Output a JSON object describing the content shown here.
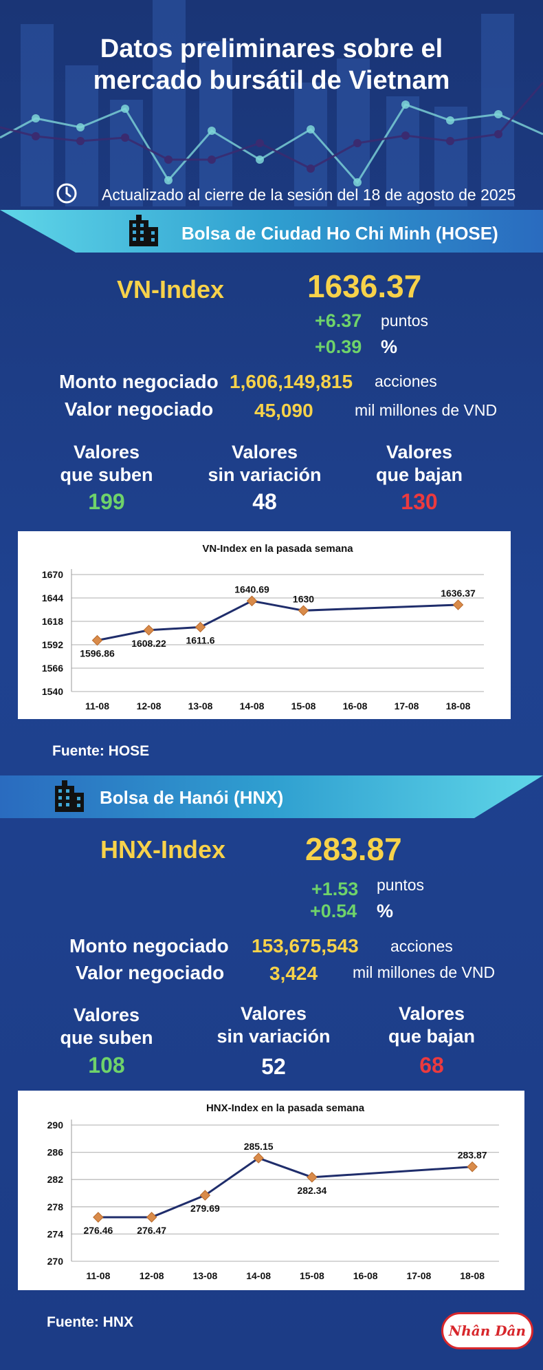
{
  "header": {
    "title_line1": "Datos preliminares sobre el",
    "title_line2": "mercado bursátil de Vietnam",
    "updated": "Actualizado al cierre de la sesión del 18 de agosto de 2025",
    "icon": "clock-icon"
  },
  "hose": {
    "exchange": "Bolsa de Ciudad Ho Chi Minh (HOSE)",
    "index_name": "VN-Index",
    "index_value": "1636.37",
    "change_points": "+6.37",
    "points_unit": "puntos",
    "change_percent": "+0.39",
    "percent_unit": "%",
    "volume_label": "Monto negociado",
    "volume_value": "1,606,149,815",
    "volume_unit": "acciones",
    "value_label": "Valor negociado",
    "value_value": "45,090",
    "value_unit": "mil millones de VND",
    "up_label_1": "Valores",
    "up_label_2": "que suben",
    "up_count": "199",
    "flat_label_1": "Valores",
    "flat_label_2": "sin variación",
    "flat_count": "48",
    "down_label_1": "Valores",
    "down_label_2": "que bajan",
    "down_count": "130",
    "source": "Fuente: HOSE"
  },
  "hnx": {
    "exchange": "Bolsa de Hanói (HNX)",
    "index_name": "HNX-Index",
    "index_value": "283.87",
    "change_points": "+1.53",
    "points_unit": "puntos",
    "change_percent": "+0.54",
    "percent_unit": "%",
    "volume_label": "Monto negociado",
    "volume_value": "153,675,543",
    "volume_unit": "acciones",
    "value_label": "Valor negociado",
    "value_value": "3,424",
    "value_unit": "mil millones de VND",
    "up_label_1": "Valores",
    "up_label_2": "que suben",
    "up_count": "108",
    "flat_label_1": "Valores",
    "flat_label_2": "sin variación",
    "flat_count": "52",
    "down_label_1": "Valores",
    "down_label_2": "que bajan",
    "down_count": "68",
    "source": "Fuente:  HNX"
  },
  "logo_text": "Nhân Dân",
  "colors": {
    "background": "#1d3c85",
    "accent_yellow": "#f7d24a",
    "up_green": "#6fd36a",
    "down_red": "#ec3a3e",
    "ribbon_cyan": "#3fc7e0",
    "line": "#1f2d6b",
    "marker": "#d98b4a"
  },
  "chart_data": [
    {
      "type": "line",
      "title": "VN-Index en la pasada semana",
      "categories": [
        "11-08",
        "12-08",
        "13-08",
        "14-08",
        "15-08",
        "16-08",
        "17-08",
        "18-08"
      ],
      "points": [
        {
          "x": "11-08",
          "y": 1596.86,
          "label": "1596.86"
        },
        {
          "x": "12-08",
          "y": 1608.22,
          "label": "1608.22"
        },
        {
          "x": "13-08",
          "y": 1611.6,
          "label": "1611.6"
        },
        {
          "x": "14-08",
          "y": 1640.69,
          "label": "1640.69"
        },
        {
          "x": "15-08",
          "y": 1630,
          "label": "1630"
        },
        {
          "x": "18-08",
          "y": 1636.37,
          "label": "1636.37"
        }
      ],
      "yticks": [
        "1540",
        "1566",
        "1592",
        "1618",
        "1644",
        "1670"
      ],
      "ylim": [
        1540,
        1670
      ],
      "grid": true
    },
    {
      "type": "line",
      "title": "HNX-Index en la pasada semana",
      "categories": [
        "11-08",
        "12-08",
        "13-08",
        "14-08",
        "15-08",
        "16-08",
        "17-08",
        "18-08"
      ],
      "points": [
        {
          "x": "11-08",
          "y": 276.46,
          "label": "276.46"
        },
        {
          "x": "12-08",
          "y": 276.47,
          "label": "276.47"
        },
        {
          "x": "13-08",
          "y": 279.69,
          "label": "279.69"
        },
        {
          "x": "14-08",
          "y": 285.15,
          "label": "285.15"
        },
        {
          "x": "15-08",
          "y": 282.34,
          "label": "282.34"
        },
        {
          "x": "18-08",
          "y": 283.87,
          "label": "283.87"
        }
      ],
      "yticks": [
        "270",
        "274",
        "278",
        "282",
        "286",
        "290"
      ],
      "ylim": [
        270,
        290
      ],
      "grid": true
    }
  ]
}
